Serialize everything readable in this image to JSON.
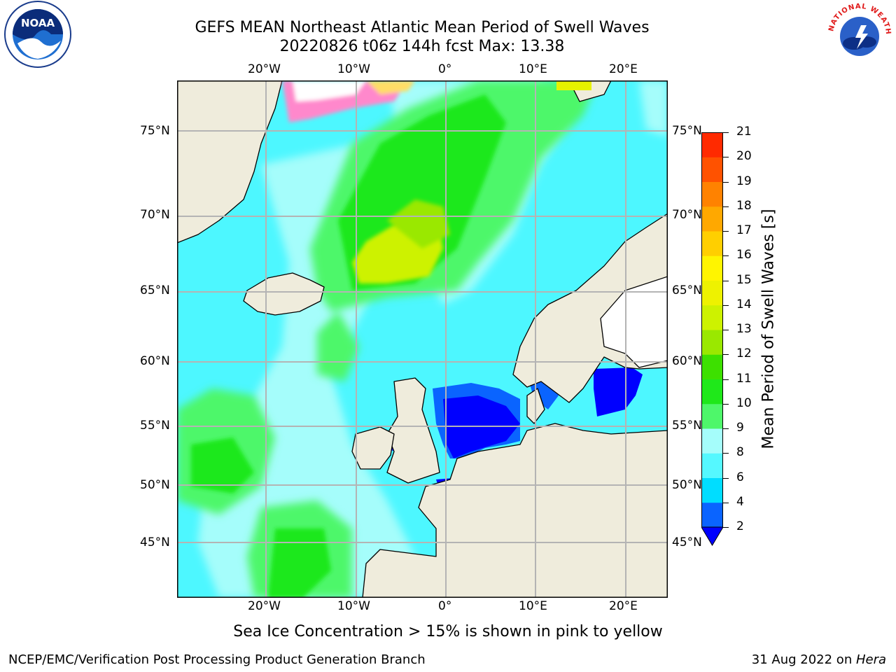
{
  "title_line1": "GEFS MEAN Northeast Atlantic Mean Period of Swell Waves",
  "title_line2": "20220826 t06z 144h fcst   Max: 13.38",
  "logos": {
    "left": "NOAA",
    "right": "NATIONAL WEATHER SERVICE"
  },
  "map": {
    "longitude_labels": [
      "20°W",
      "10°W",
      "0°",
      "10°E",
      "20°E"
    ],
    "latitude_labels": [
      "75°N",
      "70°N",
      "65°N",
      "60°N",
      "55°N",
      "50°N",
      "45°N"
    ],
    "colors": {
      "land": "#efecdc",
      "ocean_base": "#4df7ff",
      "grid": "#b4b4b4"
    }
  },
  "colorbar": {
    "title": "Mean Period of Swell Waves [s]",
    "ticks": [
      "2",
      "4",
      "6",
      "8",
      "9",
      "10",
      "11",
      "12",
      "13",
      "14",
      "15",
      "16",
      "17",
      "18",
      "19",
      "20",
      "21"
    ],
    "colors": [
      "#0a64ff",
      "#00ddff",
      "#55f8ff",
      "#a5fdfb",
      "#4ef76a",
      "#1fe81a",
      "#3de000",
      "#9ae800",
      "#cdf200",
      "#eef200",
      "#fff500",
      "#ffcf00",
      "#ffa800",
      "#ff8200",
      "#ff5200",
      "#ff2a00",
      "#ff0000"
    ],
    "under_color": "#0000ff"
  },
  "caption": "Sea Ice Concentration > 15% is shown in pink to yellow",
  "footer_left": "NCEP/EMC/Verification Post Processing Product Generation Branch",
  "footer_date": "31 Aug 2022 on ",
  "footer_host": "Hera"
}
